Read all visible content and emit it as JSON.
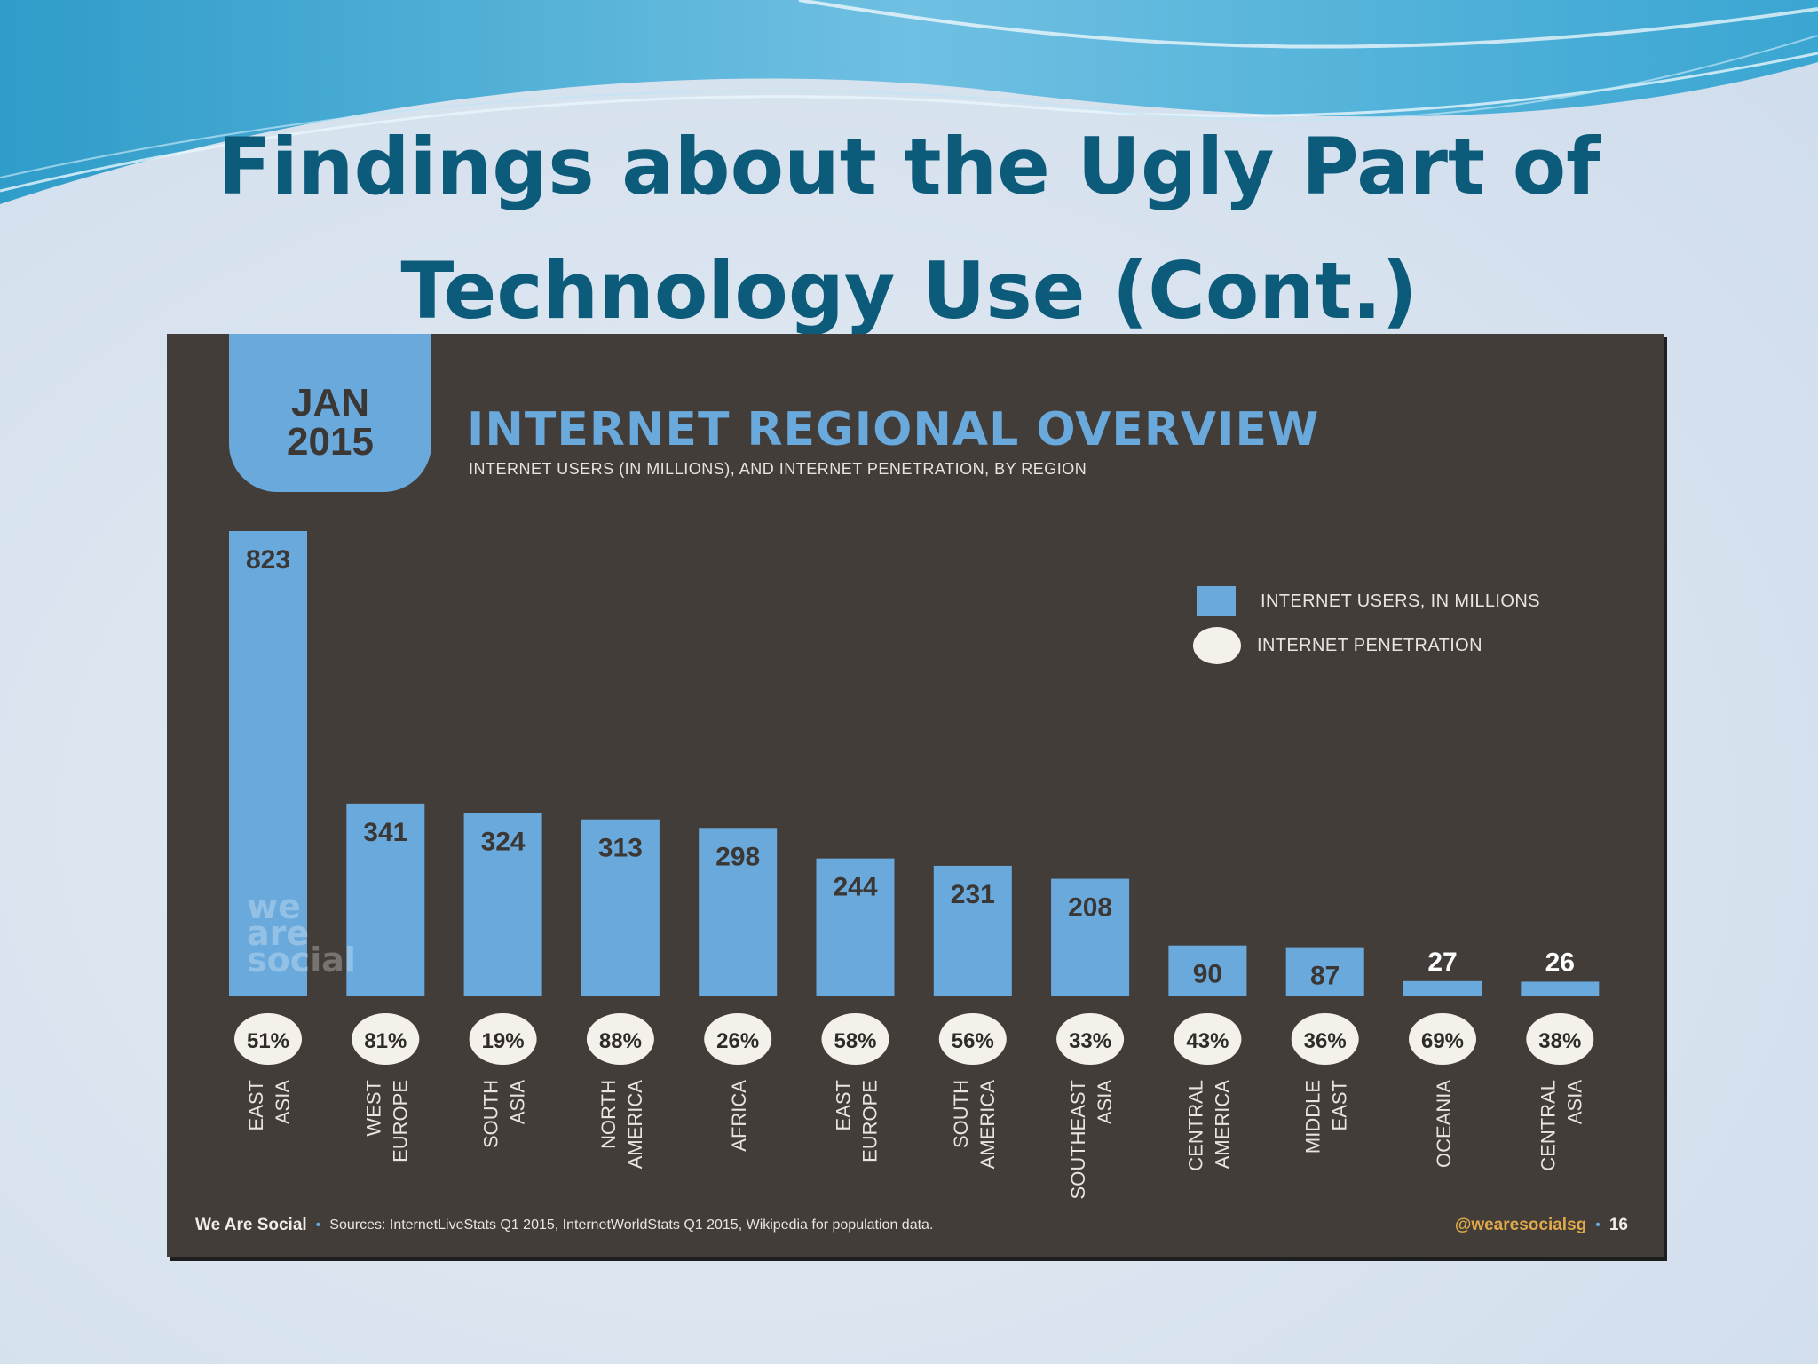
{
  "slide": {
    "title_line1": "Findings about the Ugly Part of",
    "title_line2": "Technology Use (Cont.)"
  },
  "badge": {
    "month": "JAN",
    "year": "2015"
  },
  "watermark": [
    "we",
    "are",
    "social"
  ],
  "footer": {
    "brand": "We Are Social",
    "separator": "•",
    "sources": "Sources: InternetLiveStats Q1 2015, InternetWorldStats Q1 2015, Wikipedia for population data.",
    "handle": "@wearesocialsg",
    "page": "16"
  },
  "colors": {
    "bar": "#6aa9dc",
    "panel": "#433d3a",
    "dot": "#f4f0ea",
    "title": "#0d5b7a"
  },
  "chart_data": {
    "type": "bar",
    "title": "INTERNET REGIONAL OVERVIEW",
    "subtitle": "INTERNET USERS (IN MILLIONS), AND INTERNET PENETRATION, BY REGION",
    "legend": {
      "placement": "top-right",
      "entries": [
        "INTERNET USERS, IN MILLIONS",
        "INTERNET PENETRATION"
      ]
    },
    "categories": [
      [
        "EAST",
        "ASIA"
      ],
      [
        "WEST",
        "EUROPE"
      ],
      [
        "SOUTH",
        "ASIA"
      ],
      [
        "NORTH",
        "AMERICA"
      ],
      [
        "AFRICA"
      ],
      [
        "EAST",
        "EUROPE"
      ],
      [
        "SOUTH",
        "AMERICA"
      ],
      [
        "SOUTHEAST",
        "ASIA"
      ],
      [
        "CENTRAL",
        "AMERICA"
      ],
      [
        "MIDDLE",
        "EAST"
      ],
      [
        "OCEANIA"
      ],
      [
        "CENTRAL",
        "ASIA"
      ]
    ],
    "series": [
      {
        "name": "INTERNET USERS, IN MILLIONS",
        "values": [
          823,
          341,
          324,
          313,
          298,
          244,
          231,
          208,
          90,
          87,
          27,
          26
        ]
      },
      {
        "name": "INTERNET PENETRATION",
        "values": [
          "51%",
          "81%",
          "19%",
          "88%",
          "26%",
          "58%",
          "56%",
          "33%",
          "43%",
          "36%",
          "69%",
          "38%"
        ]
      }
    ],
    "ylim": [
      0,
      823
    ],
    "grid": false
  }
}
